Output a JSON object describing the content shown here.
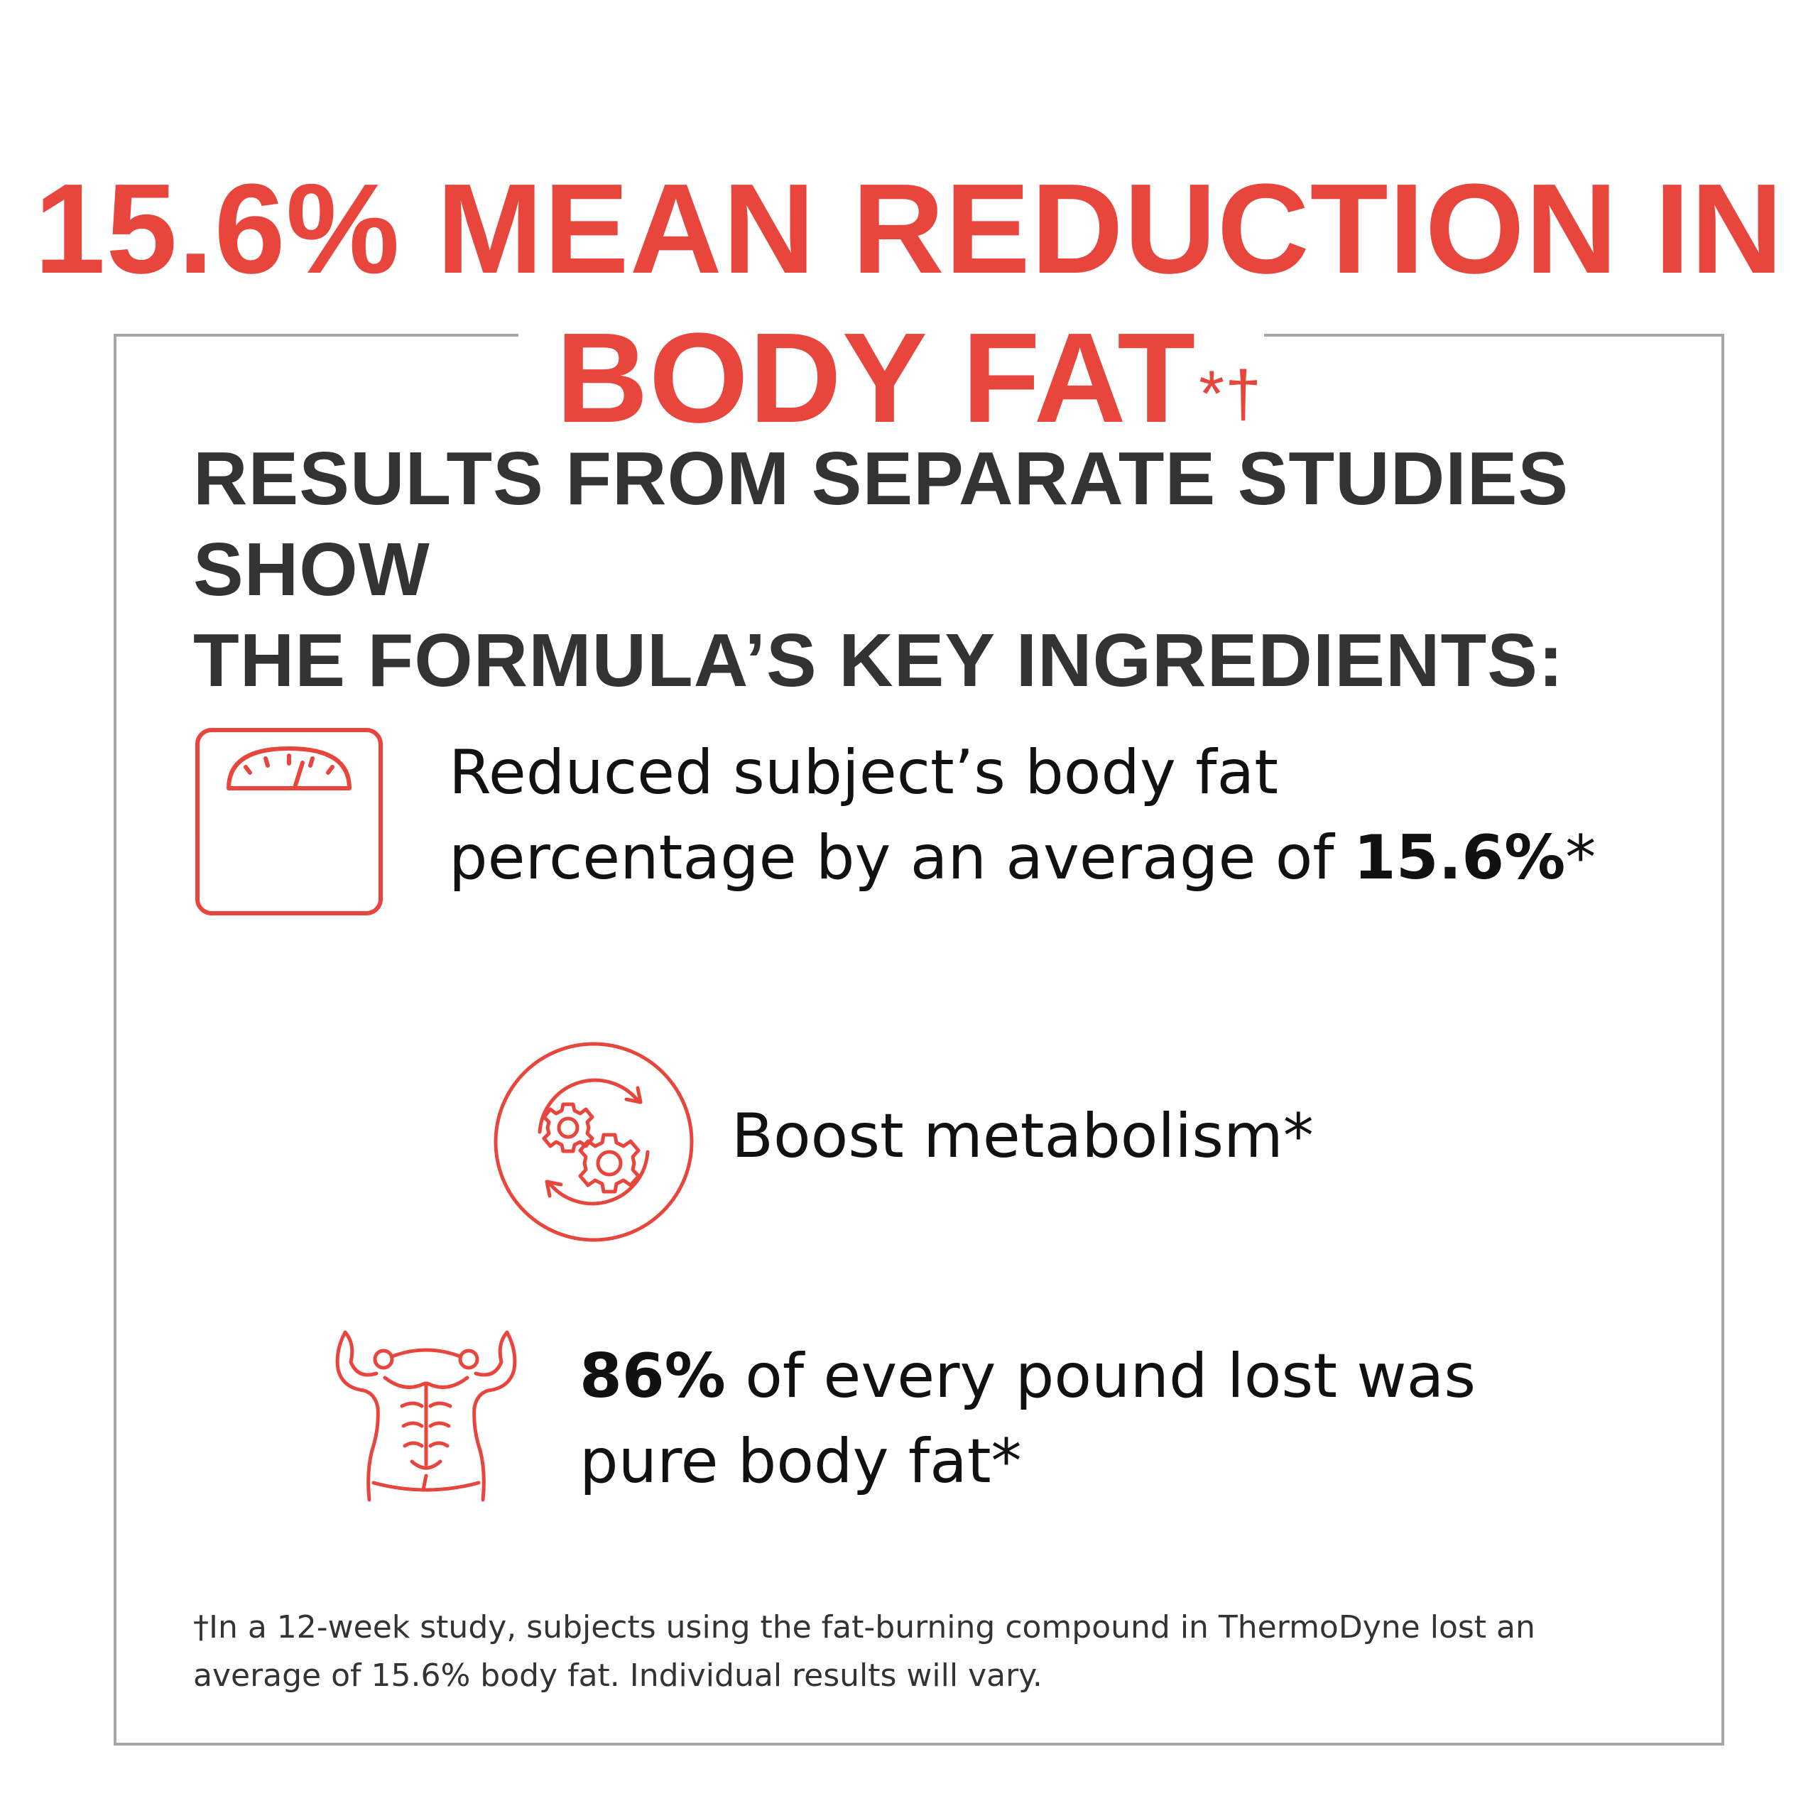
{
  "headline": {
    "line1": "15.6% MEAN REDUCTION IN",
    "line2": "BODY FAT",
    "marks": "*†"
  },
  "subheading": {
    "line1": "RESULTS FROM SEPARATE STUDIES SHOW",
    "line2": "THE FORMULA’S KEY INGREDIENTS:"
  },
  "features": [
    {
      "icon": "scale-icon",
      "line1": "Reduced subject’s body fat",
      "line2_prefix": "percentage by an average of ",
      "line2_bold": "15.6%",
      "line2_suffix": "*"
    },
    {
      "icon": "metabolism-gears-icon",
      "line1": "Boost metabolism*"
    },
    {
      "icon": "torso-muscle-icon",
      "line1_bold": "86%",
      "line1_suffix": " of every pound lost was",
      "line2": "pure body fat*"
    }
  ],
  "footnote": {
    "line1": "†In a 12-week study, subjects using the fat-burning compound in ThermoDyne lost an",
    "line2": "average of 15.6% body fat. Individual results will vary."
  },
  "colors": {
    "accent": "#e8453c",
    "text_dark": "#111111",
    "text_gray": "#333333",
    "frame": "#a7a7a7"
  }
}
